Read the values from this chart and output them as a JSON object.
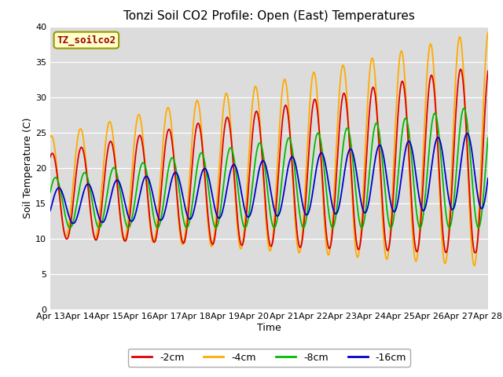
{
  "title": "Tonzi Soil CO2 Profile: Open (East) Temperatures",
  "xlabel": "Time",
  "ylabel": "Soil Temperature (C)",
  "ylim": [
    0,
    40
  ],
  "xtick_labels": [
    "Apr 13",
    "Apr 14",
    "Apr 15",
    "Apr 16",
    "Apr 17",
    "Apr 18",
    "Apr 19",
    "Apr 20",
    "Apr 21",
    "Apr 22",
    "Apr 23",
    "Apr 24",
    "Apr 25",
    "Apr 26",
    "Apr 27",
    "Apr 28"
  ],
  "colors": {
    "-2cm": "#dd0000",
    "-4cm": "#ffaa00",
    "-8cm": "#00bb00",
    "-16cm": "#0000cc"
  },
  "legend_label": "TZ_soilco2",
  "legend_bg": "#ffffcc",
  "legend_edge": "#999900",
  "plot_bg": "#dcdcdc",
  "title_fontsize": 11,
  "axis_fontsize": 9,
  "tick_fontsize": 8,
  "line_width": 1.3
}
